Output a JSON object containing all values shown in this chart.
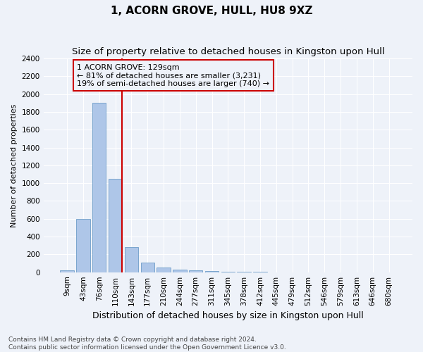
{
  "title": "1, ACORN GROVE, HULL, HU8 9XZ",
  "subtitle": "Size of property relative to detached houses in Kingston upon Hull",
  "xlabel": "Distribution of detached houses by size in Kingston upon Hull",
  "ylabel": "Number of detached properties",
  "footnote": "Contains HM Land Registry data © Crown copyright and database right 2024.\nContains public sector information licensed under the Open Government Licence v3.0.",
  "bar_labels": [
    "9sqm",
    "43sqm",
    "76sqm",
    "110sqm",
    "143sqm",
    "177sqm",
    "210sqm",
    "244sqm",
    "277sqm",
    "311sqm",
    "345sqm",
    "378sqm",
    "412sqm",
    "445sqm",
    "479sqm",
    "512sqm",
    "546sqm",
    "579sqm",
    "613sqm",
    "646sqm",
    "680sqm"
  ],
  "bar_values": [
    20,
    600,
    1900,
    1050,
    280,
    110,
    50,
    30,
    20,
    15,
    5,
    5,
    2,
    0,
    0,
    0,
    0,
    0,
    0,
    0,
    0
  ],
  "bar_color": "#aec6e8",
  "bar_edge_color": "#5a8fc0",
  "ylim": [
    0,
    2400
  ],
  "yticks": [
    0,
    200,
    400,
    600,
    800,
    1000,
    1200,
    1400,
    1600,
    1800,
    2000,
    2200,
    2400
  ],
  "vline_x": 3.42,
  "vline_color": "#cc0000",
  "annotation_text": "1 ACORN GROVE: 129sqm\n← 81% of detached houses are smaller (3,231)\n19% of semi-detached houses are larger (740) →",
  "annotation_box_color": "#cc0000",
  "bg_color": "#eef2f9",
  "grid_color": "#ffffff",
  "title_fontsize": 11,
  "subtitle_fontsize": 9.5,
  "xlabel_fontsize": 9,
  "ylabel_fontsize": 8,
  "tick_fontsize": 7.5,
  "annotation_fontsize": 8,
  "footnote_fontsize": 6.5
}
